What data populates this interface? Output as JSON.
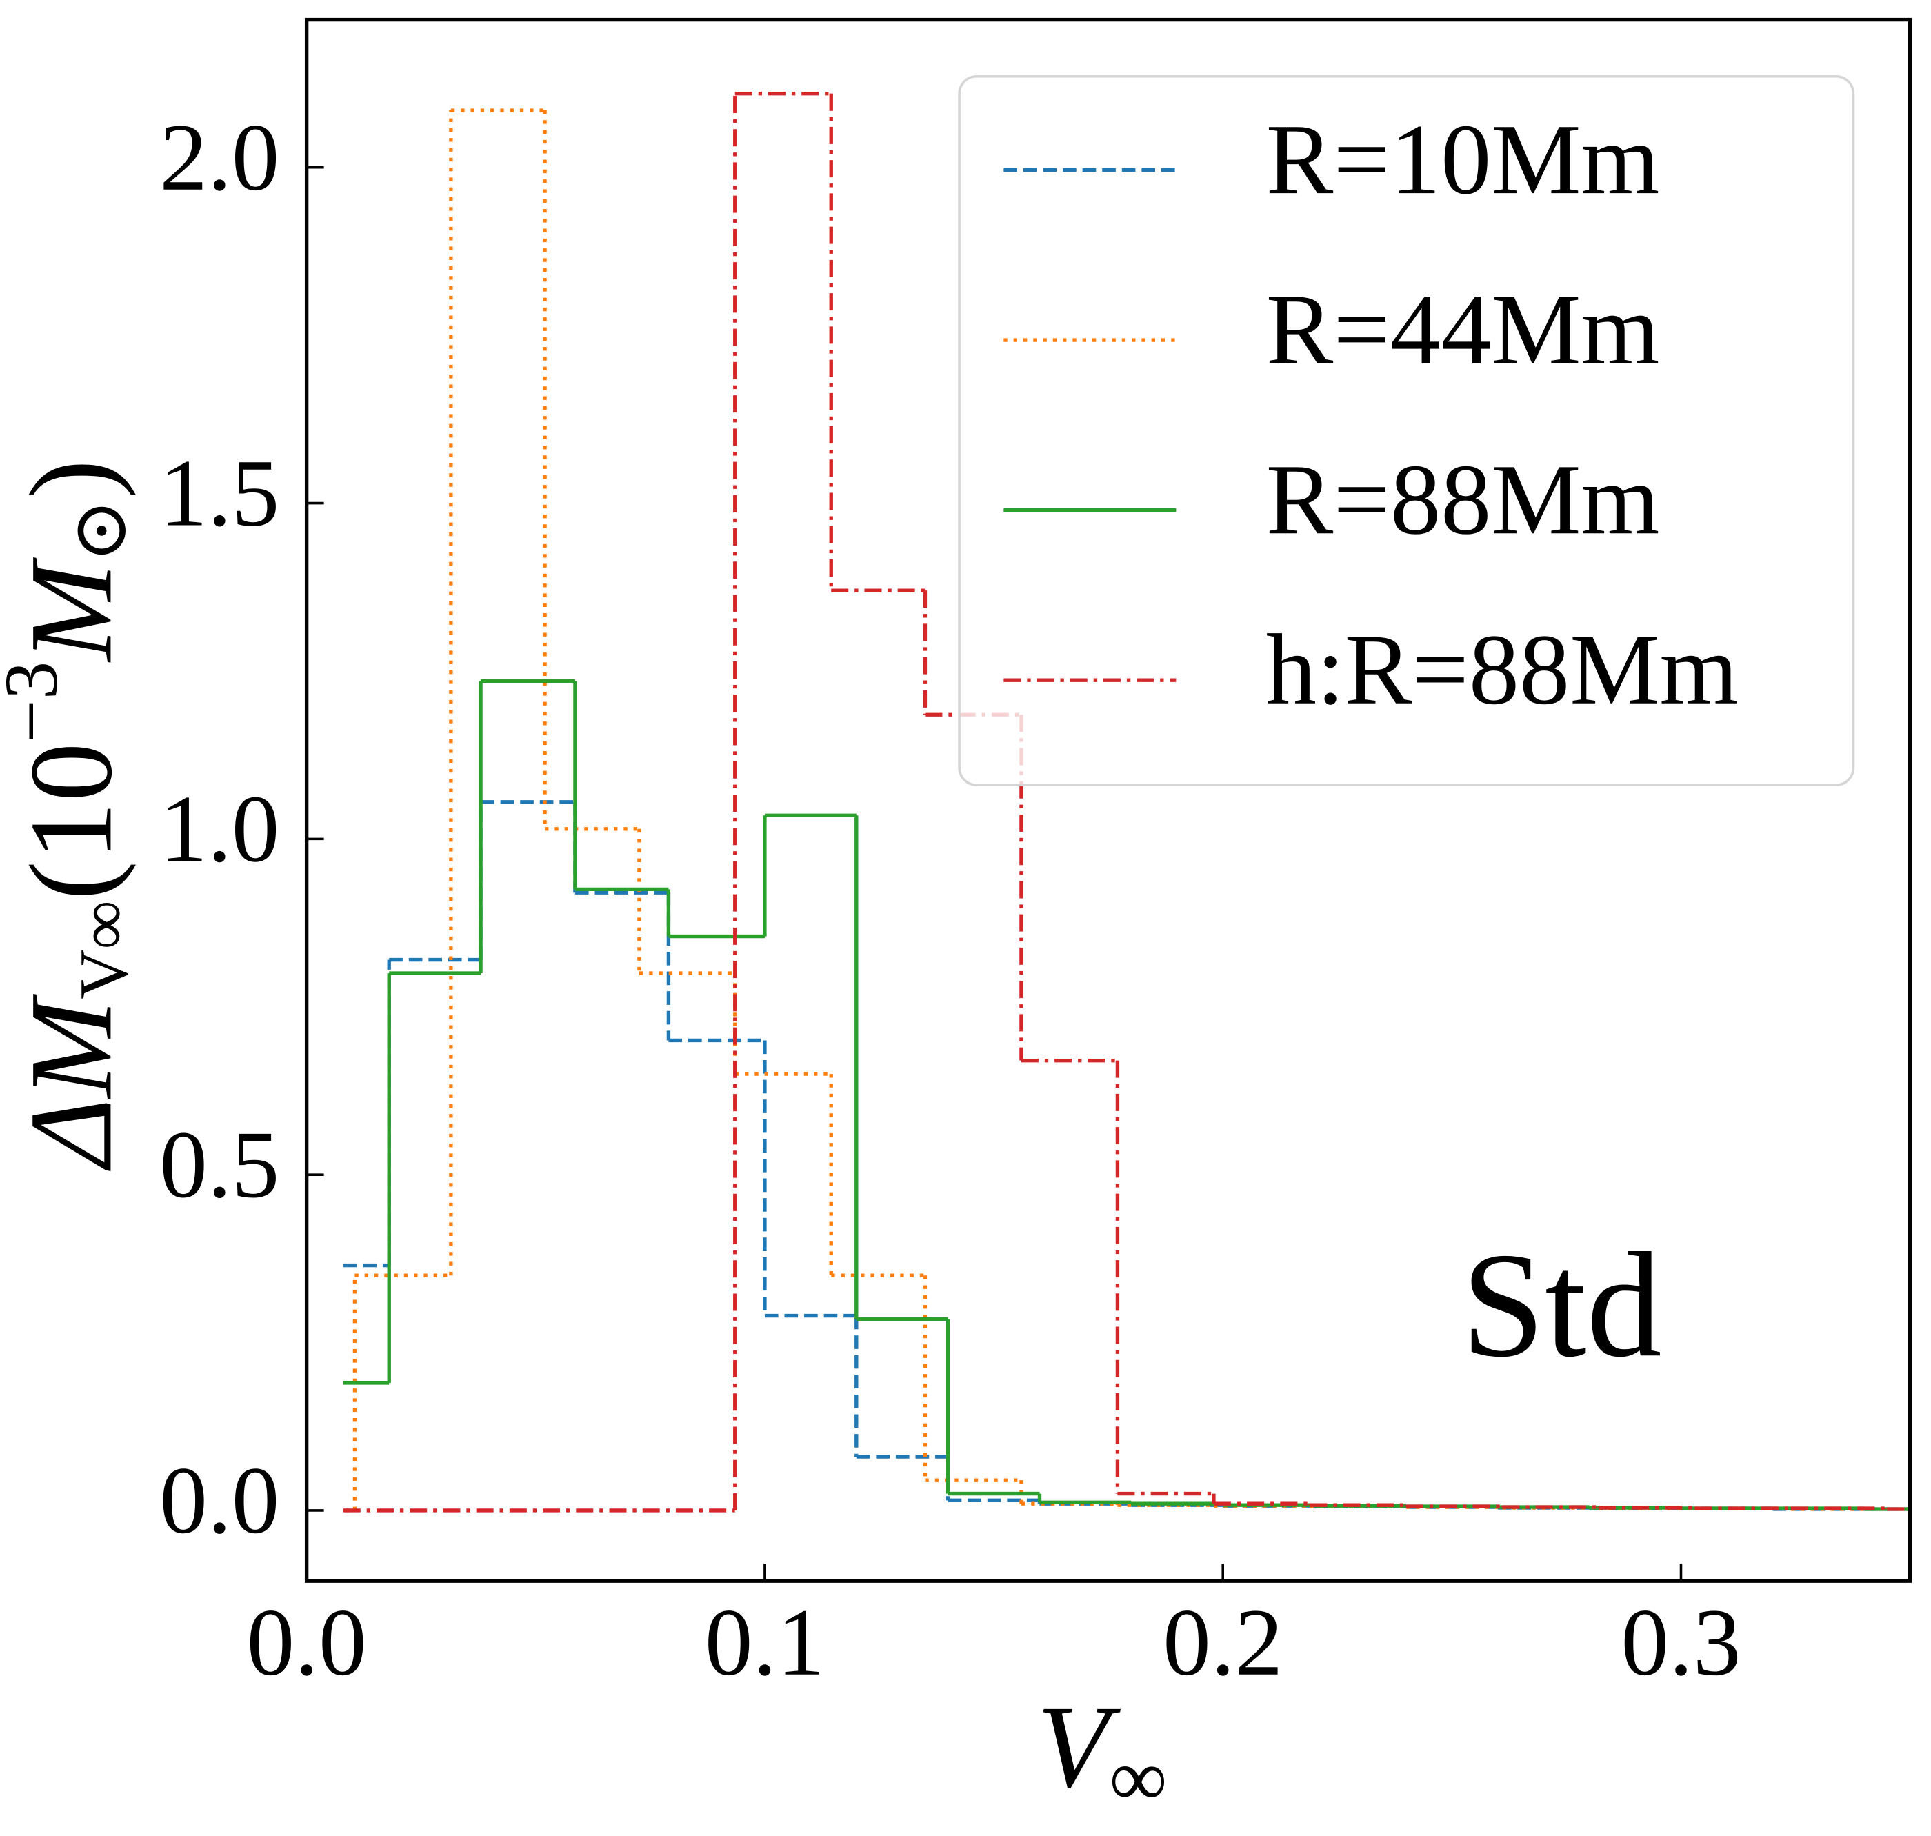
{
  "chart_data": {
    "type": "step-histogram",
    "xlabel": [
      "V",
      "∞"
    ],
    "ylabel": [
      "ΔM",
      "V∞",
      "(10",
      "−3",
      "M",
      "⊙",
      ")"
    ],
    "annotation": "Std",
    "xlim": [
      0,
      0.35
    ],
    "ylim": [
      -0.105,
      2.22
    ],
    "xticks": [
      {
        "value": 0,
        "label": "0.0"
      },
      {
        "value": 0.1,
        "label": "0.1"
      },
      {
        "value": 0.2,
        "label": "0.2"
      },
      {
        "value": 0.3,
        "label": "0.3"
      }
    ],
    "yticks": [
      {
        "value": 0,
        "label": "0.0"
      },
      {
        "value": 0.5,
        "label": "0.5"
      },
      {
        "value": 1,
        "label": "1.0"
      },
      {
        "value": 1.5,
        "label": "1.5"
      },
      {
        "value": 2,
        "label": "2.0"
      }
    ],
    "legend": "upper right",
    "series": [
      {
        "name": "R=10Mm",
        "color": "#1f77b4",
        "linestyle": "dashed",
        "bins": [
          0.008,
          0.018,
          0.038,
          0.0586,
          0.079,
          0.1,
          0.12,
          0.14,
          0.16,
          0.18,
          0.2,
          0.22,
          0.24,
          0.26,
          0.28,
          0.3,
          0.32,
          0.34,
          0.35
        ],
        "values": [
          0.365,
          0.82,
          1.055,
          0.92,
          0.7,
          0.29,
          0.08,
          0.015,
          0.01,
          0.008,
          0.007,
          0.006,
          0.005,
          0.004,
          0.003,
          0.003,
          0.002,
          0.002
        ]
      },
      {
        "name": "R=44Mm",
        "color": "#ff7f0e",
        "linestyle": "dotted",
        "bins": [
          0.0085,
          0.0105,
          0.0315,
          0.052,
          0.0726,
          0.0935,
          0.1145,
          0.135,
          0.156,
          0.177,
          0.198,
          0.219,
          0.24,
          0.261,
          0.282,
          0.303,
          0.324,
          0.345,
          0.35
        ],
        "values": [
          0,
          0.35,
          2.085,
          1.015,
          0.8,
          0.65,
          0.35,
          0.045,
          0.01,
          0.008,
          0.007,
          0.006,
          0.005,
          0.004,
          0.003,
          0.003,
          0.002,
          0.002
        ]
      },
      {
        "name": "R=88Mm",
        "color": "#2ca02c",
        "linestyle": "solid",
        "bins": [
          0.008,
          0.018,
          0.038,
          0.0586,
          0.079,
          0.1,
          0.12,
          0.14,
          0.16,
          0.18,
          0.2,
          0.22,
          0.24,
          0.26,
          0.28,
          0.3,
          0.32,
          0.34,
          0.35
        ],
        "values": [
          0.19,
          0.8,
          1.235,
          0.925,
          0.855,
          1.035,
          0.285,
          0.025,
          0.012,
          0.01,
          0.008,
          0.007,
          0.006,
          0.005,
          0.004,
          0.003,
          0.003,
          0.002
        ]
      },
      {
        "name": "h:R=88Mm",
        "color": "#d62728",
        "linestyle": "dashdot",
        "bins": [
          0.008,
          0.0935,
          0.1145,
          0.135,
          0.156,
          0.177,
          0.198,
          0.219,
          0.24,
          0.261,
          0.282,
          0.303,
          0.324,
          0.345,
          0.35
        ],
        "values": [
          0,
          2.11,
          1.37,
          1.185,
          0.67,
          0.025,
          0.01,
          0.008,
          0.006,
          0.005,
          0.004,
          0.003,
          0.003,
          0.002
        ]
      }
    ]
  }
}
